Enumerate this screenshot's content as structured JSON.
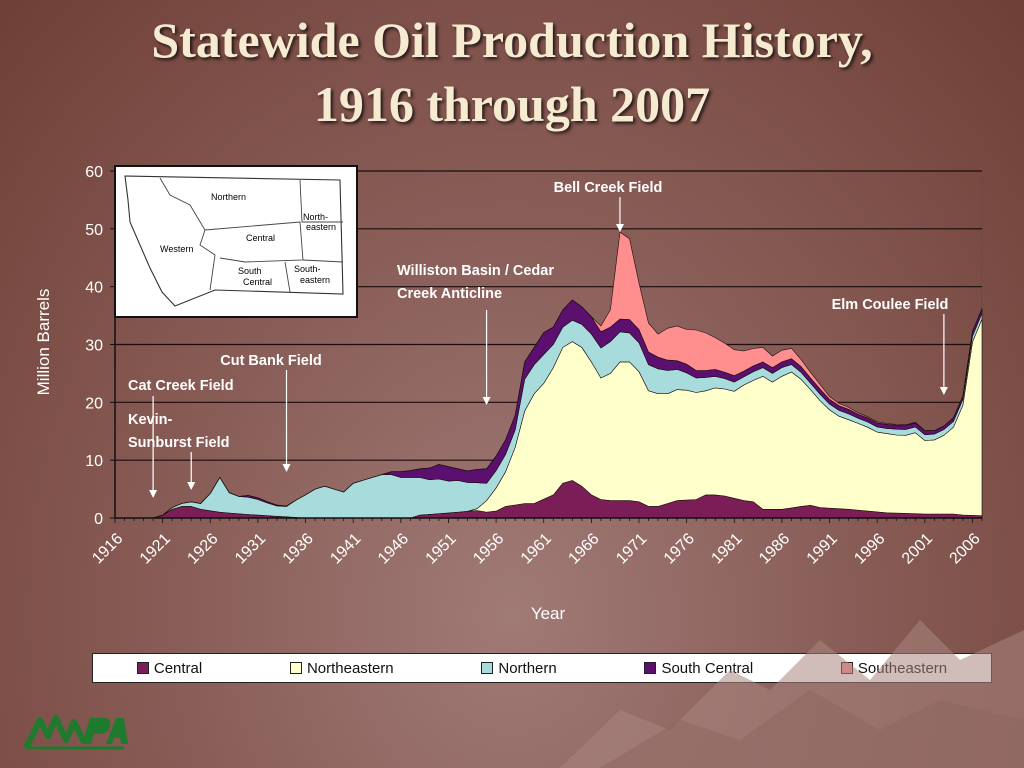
{
  "title_line1": "Statewide Oil Production History,",
  "title_line2": "1916 through 2007",
  "map_labels": {
    "northern": "Northern",
    "northeastern_1": "North-",
    "northeastern_2": "eastern",
    "western": "Western",
    "central": "Central",
    "south_central_1": "South",
    "south_central_2": "Central",
    "southeastern_1": "South-",
    "southeastern_2": "eastern"
  },
  "annotations": [
    {
      "id": "bell-creek",
      "lines": [
        "Bell Creek Field"
      ],
      "year": 1969
    },
    {
      "id": "williston",
      "lines": [
        "Williston Basin / Cedar",
        "Creek Anticline"
      ],
      "year": 1955
    },
    {
      "id": "elm-coulee",
      "lines": [
        "Elm Coulee Field"
      ],
      "year": 2003
    },
    {
      "id": "cut-bank",
      "lines": [
        "Cut Bank Field"
      ],
      "year": 1934
    },
    {
      "id": "cat-creek",
      "lines": [
        "Cat Creek Field"
      ],
      "year": 1920
    },
    {
      "id": "kevin-sunburst",
      "lines": [
        "Kevin-",
        "Sunburst Field"
      ],
      "year": 1924
    }
  ],
  "legend": [
    {
      "name": "Central",
      "color": "#7b1e57"
    },
    {
      "name": "Northeastern",
      "color": "#ffffcc"
    },
    {
      "name": "Northern",
      "color": "#a8dcdc"
    },
    {
      "name": "South Central",
      "color": "#5b0f6e"
    },
    {
      "name": "Southeastern",
      "color": "#ff8f8f"
    }
  ],
  "chart_data": {
    "type": "area",
    "stacked": true,
    "xlabel": "Year",
    "ylabel": "Million Barrels",
    "ylim": [
      0,
      60
    ],
    "yticks": [
      0,
      10,
      20,
      30,
      40,
      50,
      60
    ],
    "xticks": [
      1916,
      1921,
      1926,
      1931,
      1936,
      1941,
      1946,
      1951,
      1956,
      1961,
      1966,
      1971,
      1976,
      1981,
      1986,
      1991,
      1996,
      2001,
      2006
    ],
    "xlim": [
      1916,
      2007
    ],
    "grid": "horizontal",
    "legend_position": "bottom",
    "series": [
      {
        "name": "Central",
        "color": "#7b1e57",
        "points": [
          [
            1916,
            0
          ],
          [
            1920,
            0
          ],
          [
            1921,
            0.5
          ],
          [
            1922,
            1.5
          ],
          [
            1923,
            2
          ],
          [
            1924,
            2
          ],
          [
            1925,
            1.5
          ],
          [
            1927,
            1
          ],
          [
            1930,
            0.6
          ],
          [
            1933,
            0.3
          ],
          [
            1936,
            0
          ],
          [
            1947,
            0
          ],
          [
            1948,
            0.5
          ],
          [
            1952,
            1
          ],
          [
            1954,
            1.3
          ],
          [
            1955,
            1
          ],
          [
            1956,
            1.2
          ],
          [
            1957,
            2
          ],
          [
            1959,
            2.5
          ],
          [
            1960,
            2.5
          ],
          [
            1962,
            4
          ],
          [
            1963,
            6
          ],
          [
            1964,
            6.5
          ],
          [
            1965,
            5.5
          ],
          [
            1966,
            4
          ],
          [
            1967,
            3.2
          ],
          [
            1968,
            3
          ],
          [
            1970,
            3
          ],
          [
            1971,
            2.8
          ],
          [
            1972,
            2
          ],
          [
            1973,
            2
          ],
          [
            1974,
            2.5
          ],
          [
            1975,
            3
          ],
          [
            1977,
            3.2
          ],
          [
            1978,
            4
          ],
          [
            1979,
            4
          ],
          [
            1980,
            3.8
          ],
          [
            1982,
            3
          ],
          [
            1983,
            2.8
          ],
          [
            1984,
            1.5
          ],
          [
            1986,
            1.5
          ],
          [
            1988,
            2
          ],
          [
            1989,
            2.2
          ],
          [
            1990,
            1.8
          ],
          [
            1993,
            1.5
          ],
          [
            1997,
            0.9
          ],
          [
            2001,
            0.7
          ],
          [
            2004,
            0.7
          ],
          [
            2005,
            0.5
          ],
          [
            2007,
            0.4
          ]
        ]
      },
      {
        "name": "Northeastern",
        "color": "#ffffcc",
        "points": [
          [
            1916,
            0
          ],
          [
            1953,
            0
          ],
          [
            1954,
            0.3
          ],
          [
            1955,
            2
          ],
          [
            1956,
            4
          ],
          [
            1957,
            6
          ],
          [
            1958,
            10
          ],
          [
            1959,
            16
          ],
          [
            1960,
            19
          ],
          [
            1961,
            20
          ],
          [
            1962,
            22
          ],
          [
            1963,
            23.5
          ],
          [
            1964,
            24
          ],
          [
            1965,
            24
          ],
          [
            1966,
            23
          ],
          [
            1967,
            21
          ],
          [
            1968,
            22
          ],
          [
            1969,
            24
          ],
          [
            1970,
            24
          ],
          [
            1971,
            22.5
          ],
          [
            1972,
            20
          ],
          [
            1973,
            19.5
          ],
          [
            1974,
            19
          ],
          [
            1975,
            19.2
          ],
          [
            1976,
            19
          ],
          [
            1977,
            18.5
          ],
          [
            1978,
            18
          ],
          [
            1979,
            18.5
          ],
          [
            1980,
            18.5
          ],
          [
            1981,
            18.5
          ],
          [
            1982,
            20
          ],
          [
            1983,
            21
          ],
          [
            1984,
            23
          ],
          [
            1985,
            22
          ],
          [
            1986,
            23
          ],
          [
            1987,
            23.5
          ],
          [
            1988,
            22
          ],
          [
            1989,
            20
          ],
          [
            1990,
            18.5
          ],
          [
            1991,
            17
          ],
          [
            1992,
            16
          ],
          [
            1993,
            15.5
          ],
          [
            1994,
            15
          ],
          [
            1995,
            14.5
          ],
          [
            1996,
            13.8
          ],
          [
            1997,
            13.7
          ],
          [
            1998,
            13.5
          ],
          [
            1999,
            13.5
          ],
          [
            2000,
            14
          ],
          [
            2001,
            12.7
          ],
          [
            2002,
            12.8
          ],
          [
            2003,
            13.6
          ],
          [
            2004,
            15
          ],
          [
            2005,
            19
          ],
          [
            2006,
            30
          ],
          [
            2007,
            34
          ]
        ]
      },
      {
        "name": "Northern",
        "color": "#a8dcdc",
        "points": [
          [
            1916,
            0
          ],
          [
            1921,
            0
          ],
          [
            1922,
            0.3
          ],
          [
            1923,
            0.5
          ],
          [
            1924,
            0.8
          ],
          [
            1925,
            1
          ],
          [
            1926,
            3
          ],
          [
            1927,
            6
          ],
          [
            1928,
            3.5
          ],
          [
            1929,
            3
          ],
          [
            1930,
            3
          ],
          [
            1931,
            2.7
          ],
          [
            1932,
            2.2
          ],
          [
            1933,
            1.8
          ],
          [
            1934,
            1.8
          ],
          [
            1935,
            3
          ],
          [
            1936,
            4
          ],
          [
            1937,
            5
          ],
          [
            1938,
            5.5
          ],
          [
            1939,
            5
          ],
          [
            1940,
            4.5
          ],
          [
            1941,
            6
          ],
          [
            1942,
            6.5
          ],
          [
            1943,
            7
          ],
          [
            1944,
            7.5
          ],
          [
            1945,
            7.5
          ],
          [
            1946,
            7
          ],
          [
            1947,
            7
          ],
          [
            1948,
            6.5
          ],
          [
            1949,
            6
          ],
          [
            1950,
            6
          ],
          [
            1951,
            5.5
          ],
          [
            1952,
            5.5
          ],
          [
            1953,
            5
          ],
          [
            1954,
            4.5
          ],
          [
            1955,
            3
          ],
          [
            1956,
            3
          ],
          [
            1957,
            3
          ],
          [
            1958,
            3
          ],
          [
            1959,
            5.5
          ],
          [
            1960,
            5
          ],
          [
            1961,
            5
          ],
          [
            1962,
            4
          ],
          [
            1963,
            3.5
          ],
          [
            1964,
            3.7
          ],
          [
            1965,
            4
          ],
          [
            1966,
            4.8
          ],
          [
            1967,
            5.2
          ],
          [
            1968,
            5.5
          ],
          [
            1969,
            5.2
          ],
          [
            1970,
            5
          ],
          [
            1971,
            5
          ],
          [
            1972,
            4.5
          ],
          [
            1973,
            4.3
          ],
          [
            1974,
            4
          ],
          [
            1975,
            3.5
          ],
          [
            1976,
            3
          ],
          [
            1977,
            2.5
          ],
          [
            1978,
            2.3
          ],
          [
            1979,
            2
          ],
          [
            1980,
            1.8
          ],
          [
            1981,
            1.6
          ],
          [
            1982,
            1.4
          ],
          [
            1983,
            1.5
          ],
          [
            1984,
            1.5
          ],
          [
            1985,
            1.5
          ],
          [
            1986,
            1.5
          ],
          [
            1987,
            1.3
          ],
          [
            1988,
            1.2
          ],
          [
            1989,
            1.1
          ],
          [
            1990,
            1.1
          ],
          [
            1991,
            1
          ],
          [
            1992,
            1
          ],
          [
            1993,
            1
          ],
          [
            1994,
            0.9
          ],
          [
            1995,
            0.9
          ],
          [
            1996,
            0.9
          ],
          [
            1997,
            0.9
          ],
          [
            1998,
            1
          ],
          [
            1999,
            1
          ],
          [
            2000,
            1
          ],
          [
            2001,
            1
          ],
          [
            2002,
            1
          ],
          [
            2003,
            1
          ],
          [
            2004,
            1
          ],
          [
            2005,
            1
          ],
          [
            2006,
            1
          ],
          [
            2007,
            1
          ]
        ]
      },
      {
        "name": "South Central",
        "color": "#5b0f6e",
        "points": [
          [
            1916,
            0
          ],
          [
            1929,
            0
          ],
          [
            1930,
            0.3
          ],
          [
            1931,
            0.3
          ],
          [
            1932,
            0.2
          ],
          [
            1935,
            0
          ],
          [
            1944,
            0
          ],
          [
            1945,
            0.5
          ],
          [
            1946,
            1
          ],
          [
            1947,
            1.2
          ],
          [
            1948,
            1.5
          ],
          [
            1949,
            2
          ],
          [
            1950,
            2.5
          ],
          [
            1951,
            2.5
          ],
          [
            1952,
            2
          ],
          [
            1953,
            2
          ],
          [
            1954,
            2.3
          ],
          [
            1955,
            2.5
          ],
          [
            1956,
            2.5
          ],
          [
            1957,
            2.5
          ],
          [
            1958,
            2.5
          ],
          [
            1959,
            3
          ],
          [
            1960,
            3
          ],
          [
            1961,
            3.8
          ],
          [
            1962,
            3
          ],
          [
            1963,
            3
          ],
          [
            1964,
            3.5
          ],
          [
            1965,
            3
          ],
          [
            1966,
            3
          ],
          [
            1967,
            2.8
          ],
          [
            1968,
            2.5
          ],
          [
            1969,
            2.2
          ],
          [
            1970,
            2.3
          ],
          [
            1971,
            2.3
          ],
          [
            1972,
            2.2
          ],
          [
            1973,
            2
          ],
          [
            1974,
            1.8
          ],
          [
            1975,
            1.5
          ],
          [
            1976,
            1.5
          ],
          [
            1977,
            1.3
          ],
          [
            1978,
            1.2
          ],
          [
            1979,
            1.2
          ],
          [
            1980,
            1.1
          ],
          [
            1981,
            1.1
          ],
          [
            1982,
            1
          ],
          [
            1983,
            1
          ],
          [
            1984,
            1
          ],
          [
            1985,
            1
          ],
          [
            1986,
            1
          ],
          [
            1987,
            1
          ],
          [
            1988,
            1
          ],
          [
            1989,
            0.9
          ],
          [
            1990,
            0.9
          ],
          [
            1991,
            0.8
          ],
          [
            1992,
            0.8
          ],
          [
            1993,
            0.8
          ],
          [
            1994,
            0.7
          ],
          [
            1995,
            0.7
          ],
          [
            1996,
            0.7
          ],
          [
            1997,
            0.7
          ],
          [
            1998,
            0.7
          ],
          [
            1999,
            0.7
          ],
          [
            2000,
            0.7
          ],
          [
            2001,
            0.7
          ],
          [
            2002,
            0.6
          ],
          [
            2003,
            0.6
          ],
          [
            2004,
            0.6
          ],
          [
            2005,
            0.6
          ],
          [
            2006,
            0.8
          ],
          [
            2007,
            0.8
          ]
        ]
      },
      {
        "name": "Southeastern",
        "color": "#ff8f8f",
        "points": [
          [
            1916,
            0
          ],
          [
            1966,
            0
          ],
          [
            1967,
            1
          ],
          [
            1968,
            3
          ],
          [
            1969,
            15
          ],
          [
            1970,
            14
          ],
          [
            1971,
            8
          ],
          [
            1972,
            5
          ],
          [
            1973,
            4
          ],
          [
            1974,
            5.5
          ],
          [
            1975,
            6
          ],
          [
            1976,
            6
          ],
          [
            1977,
            7
          ],
          [
            1978,
            6.5
          ],
          [
            1979,
            5.5
          ],
          [
            1980,
            5
          ],
          [
            1981,
            4.5
          ],
          [
            1982,
            3.5
          ],
          [
            1983,
            3
          ],
          [
            1984,
            2.5
          ],
          [
            1985,
            2
          ],
          [
            1986,
            2
          ],
          [
            1987,
            1.8
          ],
          [
            1988,
            1.2
          ],
          [
            1989,
            1
          ],
          [
            1990,
            0.8
          ],
          [
            1991,
            0.5
          ],
          [
            1992,
            0.4
          ],
          [
            1993,
            0.3
          ],
          [
            1995,
            0.2
          ],
          [
            2000,
            0.1
          ],
          [
            2002,
            0
          ],
          [
            2007,
            0
          ]
        ]
      }
    ]
  }
}
